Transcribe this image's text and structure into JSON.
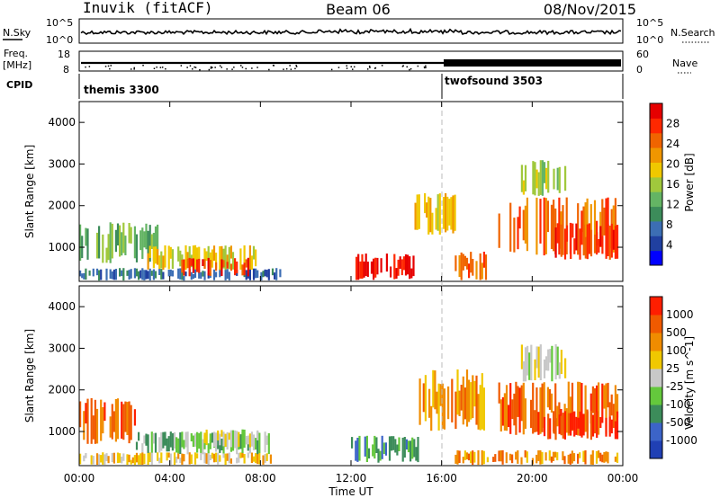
{
  "header": {
    "station": "Inuvik (fitACF)",
    "beam": "Beam 06",
    "date": "08/Nov/2015"
  },
  "noise_panel": {
    "left_label": "N.Sky",
    "left_ticks": [
      "10^5",
      "10^0"
    ],
    "right_label": "N.Search",
    "right_ticks": [
      "10^5",
      "10^0"
    ]
  },
  "freq_panel": {
    "left_label_1": "Freq.",
    "left_label_2": "[MHz]",
    "left_ticks": [
      "18",
      "8"
    ],
    "right_label": "Nave",
    "right_ticks": [
      "60",
      "0"
    ]
  },
  "cpid_panel": {
    "label": "CPID",
    "modes": [
      "themis 3300",
      "twofsound 3503"
    ]
  },
  "x_axis": {
    "ticks": [
      "00:00",
      "04:00",
      "08:00",
      "12:00",
      "16:00",
      "20:00",
      "00:00"
    ],
    "label": "Time UT"
  },
  "chart_data": [
    {
      "type": "heatmap",
      "name": "power",
      "ylabel": "Slant Range [km]",
      "yticks": [
        "1000",
        "2000",
        "3000",
        "4000"
      ],
      "ylim": [
        180,
        4500
      ],
      "xlim_hours": [
        0,
        24
      ],
      "colorbar_label": "Power [dB]",
      "colorbar_ticks": [
        "28",
        "24",
        "20",
        "16",
        "12",
        "8",
        "4"
      ],
      "colors": [
        "#0000ff",
        "#2040a0",
        "#3c6eb4",
        "#3c8c5a",
        "#64b464",
        "#a0c83c",
        "#f0c800",
        "#f09600",
        "#f06400",
        "#ff2800",
        "#e60000"
      ],
      "regions": [
        {
          "t0": 0.0,
          "t1": 9.0,
          "r0": 200,
          "r1": 500,
          "level": 2
        },
        {
          "t0": 0.0,
          "t1": 3.5,
          "r0": 600,
          "r1": 1600,
          "level": 4
        },
        {
          "t0": 3.0,
          "t1": 8.0,
          "r0": 450,
          "r1": 1050,
          "level": 6
        },
        {
          "t0": 4.5,
          "t1": 7.5,
          "r0": 300,
          "r1": 750,
          "level": 9
        },
        {
          "t0": 12.2,
          "t1": 14.8,
          "r0": 200,
          "r1": 850,
          "level": 10
        },
        {
          "t0": 14.8,
          "t1": 16.8,
          "r0": 1300,
          "r1": 2300,
          "level": 6
        },
        {
          "t0": 16.5,
          "t1": 18.0,
          "r0": 200,
          "r1": 900,
          "level": 8
        },
        {
          "t0": 18.5,
          "t1": 23.8,
          "r0": 800,
          "r1": 2200,
          "level": 8
        },
        {
          "t0": 21.0,
          "t1": 23.8,
          "r0": 700,
          "r1": 1600,
          "level": 9
        },
        {
          "t0": 19.5,
          "t1": 21.5,
          "r0": 2200,
          "r1": 3100,
          "level": 5
        }
      ]
    },
    {
      "type": "heatmap",
      "name": "velocity",
      "ylabel": "Slant Range [km]",
      "yticks": [
        "1000",
        "2000",
        "3000",
        "4000"
      ],
      "ylim": [
        180,
        4500
      ],
      "xlim_hours": [
        0,
        24
      ],
      "colorbar_label": "Velocity [m s^-1]",
      "colorbar_ticks": [
        "1000",
        "500",
        "100",
        "25",
        "-25",
        "-100",
        "-500",
        "-1000"
      ],
      "colors": [
        "#2040b4",
        "#3c64c8",
        "#3c8c5a",
        "#64c83c",
        "#c8c8c8",
        "#f0c800",
        "#f08c00",
        "#f05a00",
        "#ff1e00"
      ],
      "regions": [
        {
          "t0": 0.0,
          "t1": 2.5,
          "r0": 700,
          "r1": 1800,
          "level": 7
        },
        {
          "t0": 0.0,
          "t1": 8.5,
          "r0": 200,
          "r1": 500,
          "level": 5
        },
        {
          "t0": 2.5,
          "t1": 8.5,
          "r0": 450,
          "r1": 1000,
          "level": 3
        },
        {
          "t0": 5.5,
          "t1": 8.0,
          "r0": 600,
          "r1": 1050,
          "level": 4
        },
        {
          "t0": 12.0,
          "t1": 15.0,
          "r0": 250,
          "r1": 900,
          "level": 2
        },
        {
          "t0": 15.0,
          "t1": 18.0,
          "r0": 1000,
          "r1": 2500,
          "level": 6
        },
        {
          "t0": 18.5,
          "t1": 23.8,
          "r0": 900,
          "r1": 2200,
          "level": 7
        },
        {
          "t0": 20.5,
          "t1": 23.8,
          "r0": 800,
          "r1": 1500,
          "level": 8
        },
        {
          "t0": 19.5,
          "t1": 21.5,
          "r0": 2200,
          "r1": 3100,
          "level": 4
        },
        {
          "t0": 16.5,
          "t1": 23.8,
          "r0": 200,
          "r1": 550,
          "level": 6
        }
      ]
    }
  ]
}
